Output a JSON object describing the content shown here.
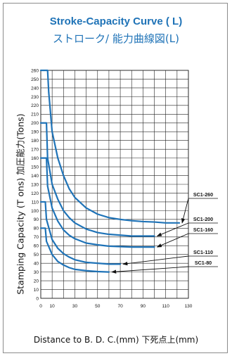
{
  "title_en": "Stroke-Capacity Curve (",
  "title_unit": "L",
  "title_close": ")",
  "title_jp": "ストローク/ 能力曲線図(L)",
  "ylabel": "Stamping Capacity (T ons)  加圧能力(Tons)",
  "xlabel": "Distance to B. D. C.(mm)   下死点上(mm)",
  "colors": {
    "curve": "#1f73b7",
    "title": "#1f73b7",
    "grid": "#222222",
    "arrow": "#111111"
  },
  "chart_data": {
    "type": "line",
    "xlim": [
      0,
      130
    ],
    "ylim": [
      0,
      260
    ],
    "xticks": [
      0,
      10,
      30,
      50,
      70,
      90,
      110,
      130
    ],
    "xtick_labels": [
      "0",
      "10",
      "30",
      "50",
      "70",
      "90",
      "110",
      "130"
    ],
    "yticks": [
      0,
      10,
      20,
      30,
      40,
      50,
      60,
      70,
      80,
      90,
      100,
      110,
      120,
      130,
      140,
      150,
      160,
      170,
      180,
      190,
      200,
      210,
      220,
      230,
      240,
      250,
      260
    ],
    "ytick_labels": [
      "0",
      "10",
      "20",
      "30",
      "40",
      "50",
      "60",
      "70",
      "80",
      "90",
      "100",
      "110",
      "120",
      "130",
      "140",
      "150",
      "160",
      "170",
      "180",
      "190",
      "200",
      "210",
      "220",
      "230",
      "240",
      "250",
      "260"
    ],
    "grid": true,
    "series": [
      {
        "name": "SC1-260",
        "x": [
          0,
          6,
          7,
          10,
          15,
          20,
          25,
          30,
          40,
          50,
          60,
          70,
          80,
          90,
          100,
          110,
          122
        ],
        "y": [
          260,
          260,
          235,
          190,
          160,
          140,
          125,
          115,
          103,
          96,
          92,
          90,
          88.5,
          87.5,
          87,
          86,
          86
        ]
      },
      {
        "name": "SC1-200",
        "x": [
          0,
          5,
          6,
          10,
          15,
          20,
          25,
          30,
          40,
          50,
          60,
          70,
          80,
          90,
          100
        ],
        "y": [
          200,
          200,
          160,
          130,
          113,
          100,
          92,
          86,
          79,
          75,
          73,
          72,
          71,
          71,
          71
        ]
      },
      {
        "name": "SC1-160",
        "x": [
          0,
          5,
          6,
          10,
          15,
          20,
          25,
          30,
          40,
          50,
          60,
          70,
          80,
          90,
          100
        ],
        "y": [
          160,
          160,
          128,
          103,
          88,
          78,
          72,
          68,
          63,
          61,
          59.5,
          59,
          58.5,
          58.5,
          58.5
        ]
      },
      {
        "name": "SC1-110",
        "x": [
          0,
          4,
          5,
          10,
          15,
          20,
          25,
          30,
          40,
          50,
          60,
          70
        ],
        "y": [
          110,
          110,
          90,
          67,
          57,
          51,
          47,
          44,
          41,
          40,
          39,
          39
        ]
      },
      {
        "name": "SC1-80",
        "x": [
          0,
          4,
          5,
          10,
          15,
          20,
          25,
          30,
          40,
          50,
          60
        ],
        "y": [
          80,
          80,
          65,
          50,
          42,
          38,
          35,
          33,
          31.5,
          30.5,
          30
        ]
      }
    ],
    "annotations": [
      {
        "label": "SC1-260",
        "point": [
          122,
          86
        ]
      },
      {
        "label": "SC1-200",
        "point": [
          100,
          71
        ]
      },
      {
        "label": "SC1-160",
        "point": [
          100,
          58.5
        ]
      },
      {
        "label": "SC1-110",
        "point": [
          70,
          39
        ]
      },
      {
        "label": "SC1-80",
        "point": [
          60,
          30
        ]
      }
    ]
  }
}
